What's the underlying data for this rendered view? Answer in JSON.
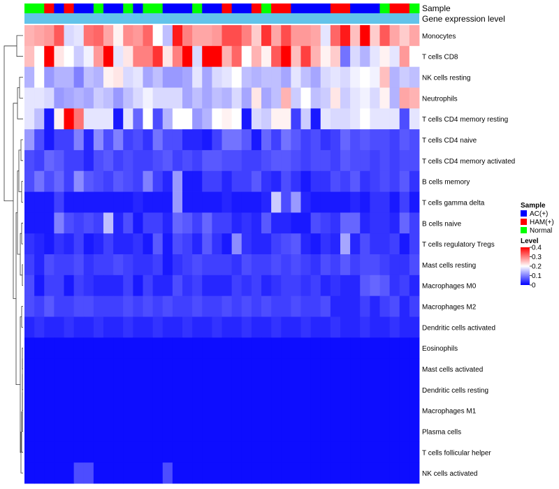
{
  "chart_data": {
    "type": "heatmap",
    "annotation_tracks": [
      "Sample",
      "Gene expression level"
    ],
    "gene_expression_color": "#62c3ea",
    "sample_colors": {
      "AC(+)": "#0000ff",
      "HAM(+)": "#ff0000",
      "Normal": "#00ff00"
    },
    "samples": [
      "Normal",
      "Normal",
      "HAM(+)",
      "AC(+)",
      "HAM(+)",
      "AC(+)",
      "AC(+)",
      "Normal",
      "AC(+)",
      "AC(+)",
      "Normal",
      "AC(+)",
      "Normal",
      "Normal",
      "AC(+)",
      "AC(+)",
      "AC(+)",
      "Normal",
      "AC(+)",
      "AC(+)",
      "HAM(+)",
      "AC(+)",
      "AC(+)",
      "HAM(+)",
      "Normal",
      "HAM(+)",
      "HAM(+)",
      "AC(+)",
      "AC(+)",
      "AC(+)",
      "AC(+)",
      "HAM(+)",
      "HAM(+)",
      "AC(+)",
      "AC(+)",
      "AC(+)",
      "Normal",
      "HAM(+)",
      "HAM(+)",
      "Normal"
    ],
    "rows": [
      "Monocytes",
      "T cells CD8",
      "NK cells resting",
      "Neutrophils",
      "T cells CD4 memory resting",
      "T cells CD4 naive",
      "T cells CD4 memory activated",
      "B cells memory",
      "T cells gamma delta",
      "B cells naive",
      "T cells regulatory  Tregs",
      "Mast cells resting",
      "Macrophages M0",
      "Macrophages M2",
      "Dendritic cells activated",
      "Eosinophils",
      "Mast cells activated",
      "Dendritic cells resting",
      "Macrophages M1",
      "Plasma cells",
      "T cells follicular helper",
      "NK cells activated"
    ],
    "values": [
      [
        0.26,
        0.27,
        0.28,
        0.33,
        0.17,
        0.18,
        0.31,
        0.32,
        0.27,
        0.21,
        0.29,
        0.28,
        0.32,
        0.2,
        0.15,
        0.38,
        0.3,
        0.27,
        0.27,
        0.28,
        0.34,
        0.34,
        0.3,
        0.24,
        0.36,
        0.27,
        0.34,
        0.28,
        0.28,
        0.27,
        0.18,
        0.32,
        0.38,
        0.25,
        0.4,
        0.24,
        0.33,
        0.27,
        0.24,
        0.27
      ],
      [
        0.25,
        0.2,
        0.4,
        0.22,
        0.2,
        0.16,
        0.19,
        0.28,
        0.4,
        0.18,
        0.22,
        0.3,
        0.3,
        0.36,
        0.22,
        0.3,
        0.4,
        0.17,
        0.4,
        0.4,
        0.26,
        0.32,
        0.2,
        0.26,
        0.21,
        0.33,
        0.4,
        0.25,
        0.35,
        0.26,
        0.21,
        0.24,
        0.09,
        0.17,
        0.14,
        0.18,
        0.21,
        0.18,
        0.28,
        0.2
      ],
      [
        0.14,
        0.2,
        0.12,
        0.14,
        0.14,
        0.1,
        0.15,
        0.14,
        0.21,
        0.22,
        0.17,
        0.18,
        0.13,
        0.15,
        0.12,
        0.12,
        0.13,
        0.18,
        0.13,
        0.17,
        0.18,
        0.2,
        0.15,
        0.14,
        0.15,
        0.15,
        0.13,
        0.18,
        0.15,
        0.13,
        0.17,
        0.18,
        0.17,
        0.19,
        0.2,
        0.19,
        0.25,
        0.14,
        0.16,
        0.15
      ],
      [
        0.18,
        0.18,
        0.17,
        0.12,
        0.13,
        0.14,
        0.13,
        0.16,
        0.15,
        0.12,
        0.15,
        0.17,
        0.19,
        0.17,
        0.17,
        0.17,
        0.13,
        0.15,
        0.13,
        0.15,
        0.14,
        0.17,
        0.13,
        0.22,
        0.13,
        0.15,
        0.26,
        0.16,
        0.2,
        0.15,
        0.16,
        0.22,
        0.16,
        0.18,
        0.19,
        0.17,
        0.21,
        0.14,
        0.27,
        0.26
      ],
      [
        0.18,
        0.15,
        0.02,
        0.21,
        0.4,
        0.31,
        0.18,
        0.18,
        0.18,
        0.02,
        0.18,
        0.08,
        0.2,
        0.06,
        0.14,
        0.2,
        0.2,
        0.12,
        0.14,
        0.2,
        0.21,
        0.2,
        0.02,
        0.17,
        0.16,
        0.21,
        0.21,
        0.05,
        0.16,
        0.02,
        0.18,
        0.17,
        0.17,
        0.18,
        0.2,
        0.18,
        0.18,
        0.18,
        0.06,
        0.18
      ],
      [
        0.12,
        0.06,
        0.02,
        0.05,
        0.05,
        0.1,
        0.03,
        0.11,
        0.06,
        0.1,
        0.05,
        0.06,
        0.04,
        0.09,
        0.06,
        0.06,
        0.03,
        0.03,
        0.02,
        0.05,
        0.09,
        0.09,
        0.07,
        0.02,
        0.08,
        0.05,
        0.09,
        0.07,
        0.05,
        0.06,
        0.04,
        0.05,
        0.08,
        0.06,
        0.07,
        0.06,
        0.06,
        0.05,
        0.07,
        0.06
      ],
      [
        0.06,
        0.05,
        0.08,
        0.07,
        0.05,
        0.05,
        0.03,
        0.06,
        0.07,
        0.05,
        0.06,
        0.05,
        0.05,
        0.06,
        0.07,
        0.05,
        0.06,
        0.05,
        0.07,
        0.07,
        0.06,
        0.06,
        0.05,
        0.05,
        0.06,
        0.07,
        0.07,
        0.06,
        0.05,
        0.06,
        0.06,
        0.05,
        0.07,
        0.06,
        0.06,
        0.05,
        0.06,
        0.05,
        0.06,
        0.06
      ],
      [
        0.06,
        0.09,
        0.06,
        0.08,
        0.05,
        0.11,
        0.07,
        0.06,
        0.05,
        0.07,
        0.06,
        0.05,
        0.1,
        0.05,
        0.03,
        0.12,
        0.02,
        0.02,
        0.05,
        0.05,
        0.03,
        0.05,
        0.05,
        0.07,
        0.04,
        0.03,
        0.06,
        0.04,
        0.02,
        0.04,
        0.04,
        0.06,
        0.05,
        0.07,
        0.04,
        0.05,
        0.06,
        0.05,
        0.07,
        0.04
      ],
      [
        0.02,
        0.02,
        0.02,
        0.05,
        0.02,
        0.02,
        0.02,
        0.02,
        0.02,
        0.02,
        0.02,
        0.03,
        0.02,
        0.02,
        0.02,
        0.12,
        0.02,
        0.02,
        0.02,
        0.02,
        0.03,
        0.02,
        0.02,
        0.02,
        0.03,
        0.16,
        0.06,
        0.12,
        0.03,
        0.02,
        0.02,
        0.02,
        0.02,
        0.03,
        0.02,
        0.04,
        0.04,
        0.02,
        0.05,
        0.02
      ],
      [
        0.02,
        0.02,
        0.02,
        0.1,
        0.06,
        0.05,
        0.06,
        0.05,
        0.15,
        0.03,
        0.06,
        0.02,
        0.05,
        0.05,
        0.03,
        0.08,
        0.07,
        0.05,
        0.08,
        0.05,
        0.05,
        0.03,
        0.04,
        0.03,
        0.07,
        0.03,
        0.03,
        0.02,
        0.02,
        0.06,
        0.05,
        0.04,
        0.08,
        0.08,
        0.03,
        0.04,
        0.04,
        0.03,
        0.08,
        0.05
      ],
      [
        0.04,
        0.03,
        0.02,
        0.04,
        0.03,
        0.05,
        0.02,
        0.03,
        0.05,
        0.03,
        0.03,
        0.04,
        0.02,
        0.07,
        0.02,
        0.06,
        0.05,
        0.03,
        0.07,
        0.04,
        0.02,
        0.11,
        0.04,
        0.03,
        0.03,
        0.05,
        0.06,
        0.07,
        0.03,
        0.02,
        0.04,
        0.03,
        0.13,
        0.03,
        0.06,
        0.04,
        0.04,
        0.05,
        0.02,
        0.05
      ],
      [
        0.05,
        0.03,
        0.06,
        0.05,
        0.05,
        0.06,
        0.04,
        0.05,
        0.05,
        0.06,
        0.05,
        0.04,
        0.04,
        0.05,
        0.02,
        0.04,
        0.05,
        0.06,
        0.05,
        0.05,
        0.05,
        0.04,
        0.06,
        0.05,
        0.05,
        0.06,
        0.05,
        0.06,
        0.05,
        0.04,
        0.06,
        0.05,
        0.07,
        0.05,
        0.06,
        0.06,
        0.05,
        0.04,
        0.04,
        0.06
      ],
      [
        0.06,
        0.02,
        0.05,
        0.05,
        0.02,
        0.05,
        0.04,
        0.03,
        0.03,
        0.03,
        0.05,
        0.02,
        0.05,
        0.03,
        0.03,
        0.06,
        0.04,
        0.05,
        0.03,
        0.03,
        0.03,
        0.05,
        0.04,
        0.05,
        0.03,
        0.04,
        0.05,
        0.05,
        0.04,
        0.05,
        0.03,
        0.04,
        0.03,
        0.03,
        0.07,
        0.08,
        0.07,
        0.04,
        0.05,
        0.03
      ],
      [
        0.06,
        0.05,
        0.07,
        0.05,
        0.05,
        0.06,
        0.06,
        0.05,
        0.05,
        0.05,
        0.06,
        0.05,
        0.06,
        0.05,
        0.06,
        0.05,
        0.05,
        0.06,
        0.05,
        0.05,
        0.06,
        0.05,
        0.06,
        0.05,
        0.06,
        0.05,
        0.05,
        0.06,
        0.05,
        0.05,
        0.06,
        0.03,
        0.03,
        0.03,
        0.05,
        0.03,
        0.05,
        0.06,
        0.03,
        0.05
      ],
      [
        0.03,
        0.04,
        0.03,
        0.03,
        0.04,
        0.03,
        0.03,
        0.04,
        0.03,
        0.03,
        0.04,
        0.03,
        0.03,
        0.04,
        0.03,
        0.03,
        0.04,
        0.03,
        0.03,
        0.04,
        0.03,
        0.03,
        0.04,
        0.03,
        0.03,
        0.04,
        0.03,
        0.03,
        0.04,
        0.03,
        0.03,
        0.04,
        0.03,
        0.03,
        0.04,
        0.03,
        0.03,
        0.04,
        0.03,
        0.03
      ],
      [
        0.01,
        0.01,
        0.01,
        0.01,
        0.01,
        0.01,
        0.01,
        0.01,
        0.01,
        0.01,
        0.01,
        0.01,
        0.01,
        0.01,
        0.01,
        0.01,
        0.01,
        0.01,
        0.01,
        0.01,
        0.01,
        0.01,
        0.01,
        0.01,
        0.01,
        0.01,
        0.01,
        0.01,
        0.01,
        0.01,
        0.01,
        0.01,
        0.01,
        0.01,
        0.01,
        0.01,
        0.01,
        0.01,
        0.01,
        0.01
      ],
      [
        0.01,
        0.01,
        0.01,
        0.01,
        0.01,
        0.01,
        0.01,
        0.01,
        0.01,
        0.01,
        0.01,
        0.01,
        0.01,
        0.01,
        0.01,
        0.01,
        0.01,
        0.01,
        0.01,
        0.01,
        0.01,
        0.01,
        0.01,
        0.01,
        0.01,
        0.01,
        0.01,
        0.01,
        0.01,
        0.01,
        0.01,
        0.01,
        0.01,
        0.01,
        0.01,
        0.01,
        0.01,
        0.01,
        0.01,
        0.01
      ],
      [
        0.01,
        0.01,
        0.01,
        0.01,
        0.01,
        0.01,
        0.01,
        0.01,
        0.01,
        0.01,
        0.01,
        0.01,
        0.01,
        0.01,
        0.01,
        0.01,
        0.01,
        0.01,
        0.01,
        0.01,
        0.01,
        0.01,
        0.01,
        0.01,
        0.01,
        0.01,
        0.01,
        0.01,
        0.01,
        0.01,
        0.01,
        0.01,
        0.01,
        0.01,
        0.01,
        0.01,
        0.01,
        0.01,
        0.01,
        0.01
      ],
      [
        0.01,
        0.01,
        0.01,
        0.01,
        0.01,
        0.01,
        0.01,
        0.01,
        0.01,
        0.01,
        0.01,
        0.01,
        0.01,
        0.01,
        0.01,
        0.01,
        0.01,
        0.01,
        0.01,
        0.01,
        0.01,
        0.01,
        0.01,
        0.01,
        0.01,
        0.01,
        0.01,
        0.01,
        0.01,
        0.01,
        0.01,
        0.01,
        0.01,
        0.01,
        0.01,
        0.01,
        0.01,
        0.01,
        0.01,
        0.01
      ],
      [
        0.01,
        0.01,
        0.01,
        0.01,
        0.01,
        0.01,
        0.01,
        0.01,
        0.01,
        0.01,
        0.01,
        0.01,
        0.01,
        0.01,
        0.01,
        0.01,
        0.01,
        0.01,
        0.01,
        0.01,
        0.01,
        0.01,
        0.01,
        0.01,
        0.01,
        0.01,
        0.01,
        0.01,
        0.01,
        0.01,
        0.01,
        0.01,
        0.01,
        0.01,
        0.01,
        0.01,
        0.01,
        0.01,
        0.01,
        0.01
      ],
      [
        0.01,
        0.01,
        0.01,
        0.01,
        0.01,
        0.01,
        0.01,
        0.01,
        0.01,
        0.01,
        0.01,
        0.01,
        0.01,
        0.01,
        0.01,
        0.01,
        0.01,
        0.01,
        0.01,
        0.01,
        0.01,
        0.01,
        0.01,
        0.01,
        0.01,
        0.01,
        0.01,
        0.01,
        0.01,
        0.01,
        0.01,
        0.01,
        0.01,
        0.01,
        0.01,
        0.01,
        0.01,
        0.01,
        0.01,
        0.01
      ],
      [
        0.01,
        0.01,
        0.01,
        0.01,
        0.01,
        0.06,
        0.06,
        0.01,
        0.01,
        0.01,
        0.01,
        0.01,
        0.01,
        0.01,
        0.06,
        0.01,
        0.01,
        0.01,
        0.01,
        0.01,
        0.01,
        0.01,
        0.01,
        0.01,
        0.01,
        0.01,
        0.01,
        0.01,
        0.01,
        0.01,
        0.01,
        0.01,
        0.01,
        0.01,
        0.01,
        0.01,
        0.01,
        0.01,
        0.01,
        0.01
      ]
    ],
    "color_scale": {
      "min": 0,
      "max": 0.4,
      "colors": [
        "#0000ff",
        "#ffffff",
        "#ff0000"
      ]
    },
    "legend": {
      "sample_title": "Sample",
      "sample_items": [
        "AC(+)",
        "HAM(+)",
        "Normal"
      ],
      "level_title": "Level",
      "level_ticks": [
        "0.4",
        "0.3",
        "0.2",
        "0.1",
        "0"
      ],
      "level_tick_values": [
        0.4,
        0.3,
        0.2,
        0.1,
        0
      ]
    }
  }
}
